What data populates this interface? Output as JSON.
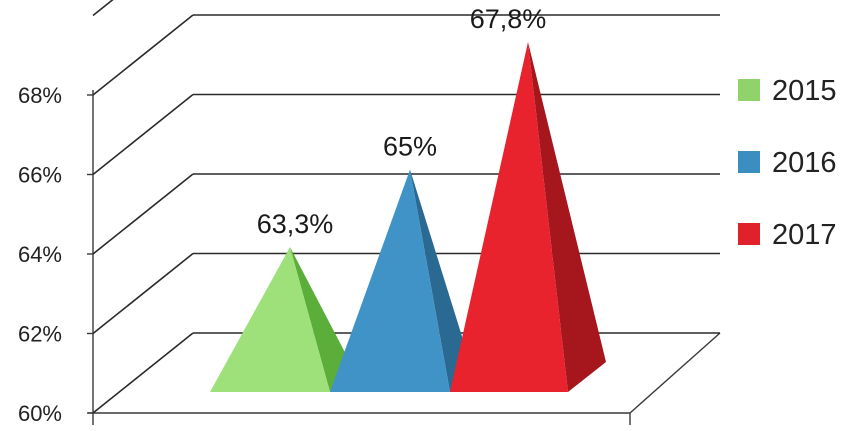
{
  "chart_data": {
    "type": "bar",
    "style": "3d-pyramid",
    "categories": [
      "2015",
      "2016",
      "2017"
    ],
    "values": [
      63.3,
      65,
      67.8
    ],
    "data_labels": [
      "63,3%",
      "65%",
      "67,8%"
    ],
    "ylim": [
      60,
      68
    ],
    "y_ticks": [
      "60%",
      "62%",
      "64%",
      "66%",
      "68%"
    ],
    "grid": true,
    "legend_position": "right",
    "legend": [
      {
        "name": "2015",
        "color": "#8fd36a"
      },
      {
        "name": "2016",
        "color": "#3a8fc0"
      },
      {
        "name": "2017",
        "color": "#e0202b"
      }
    ],
    "colors": {
      "2015": {
        "front": "#9ee07a",
        "side": "#5cae3a"
      },
      "2016": {
        "front": "#3f93c6",
        "side": "#2a6a92"
      },
      "2017": {
        "front": "#e8232d",
        "side": "#a5161d"
      }
    }
  }
}
